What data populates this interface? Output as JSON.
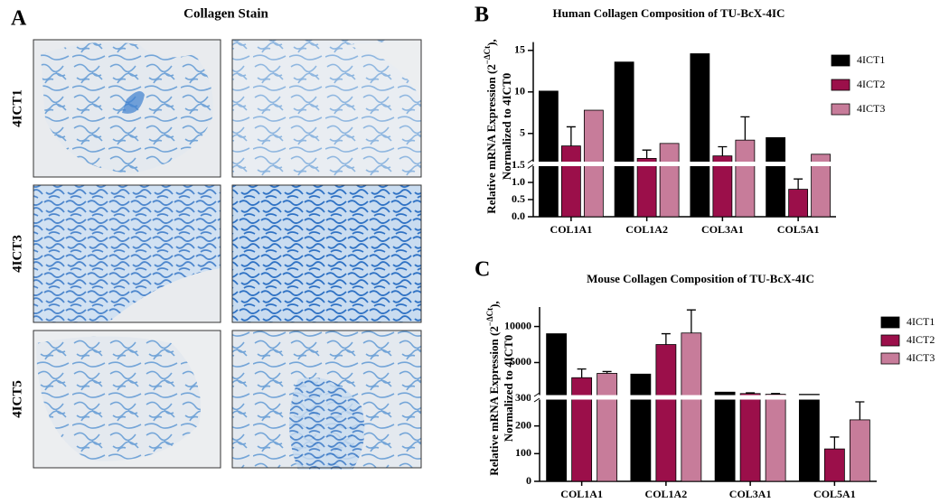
{
  "panel_a": {
    "label": "A",
    "title": "Collagen Stain",
    "rows": [
      "4ICT1",
      "4ICT3",
      "4ICT5"
    ]
  },
  "chart_data": [
    {
      "type": "bar",
      "panel": "B",
      "title": "Human Collagen Composition of TU-BcX-4IC",
      "ylabel": [
        "Relative mRNA Expression (2",
        "−ΔCt",
        "),",
        "Normalized to 4ICT0"
      ],
      "categories": [
        "COL1A1",
        "COL1A2",
        "COL3A1",
        "COL5A1"
      ],
      "y_segments": [
        {
          "ylim": [
            0,
            1.5
          ],
          "yticks": [
            {
              "value": 0,
              "label": "0.0"
            },
            0.5,
            {
              "value": 1,
              "label": "1.0"
            },
            1.5
          ]
        },
        {
          "ylim": [
            1.5,
            16
          ],
          "yticks": [
            5,
            10,
            15
          ]
        }
      ],
      "series": [
        {
          "name": "4ICT1",
          "color": "#000000",
          "values": [
            10.1,
            13.6,
            14.6,
            4.5
          ]
        },
        {
          "name": "4ICT2",
          "color": "#9b0f4a",
          "values": [
            3.5,
            2.0,
            2.3,
            0.8
          ],
          "errors": [
            2.3,
            1.0,
            1.1,
            0.3
          ]
        },
        {
          "name": "4ICT3",
          "color": "#c77c9a",
          "values": [
            7.8,
            3.8,
            4.2,
            2.5
          ],
          "errors": [
            null,
            null,
            2.8,
            null
          ]
        }
      ]
    },
    {
      "type": "bar",
      "panel": "C",
      "title": "Mouse Collagen Composition of TU-BcX-4IC",
      "ylabel": [
        "Relative mRNA Expression (2",
        "−ΔCt",
        "),",
        "Normalized to 4ICT0"
      ],
      "categories": [
        "COL1A1",
        "COL1A2",
        "COL3A1",
        "COL5A1"
      ],
      "y_segments": [
        {
          "ylim": [
            0,
            300
          ],
          "yticks": [
            0,
            100,
            200,
            300
          ]
        },
        {
          "ylim": [
            300,
            12700
          ],
          "yticks": [
            5000,
            10000
          ]
        }
      ],
      "series": [
        {
          "name": "4ICT1",
          "color": "#000000",
          "values": [
            9000,
            3400,
            900,
            600
          ]
        },
        {
          "name": "4ICT2",
          "color": "#9b0f4a",
          "values": [
            2900,
            7500,
            700,
            117
          ],
          "errors": [
            1200,
            1500,
            100,
            43
          ]
        },
        {
          "name": "4ICT3",
          "color": "#c77c9a",
          "values": [
            3500,
            9100,
            600,
            222
          ],
          "errors": [
            250,
            3200,
            100,
            65
          ]
        }
      ]
    }
  ]
}
